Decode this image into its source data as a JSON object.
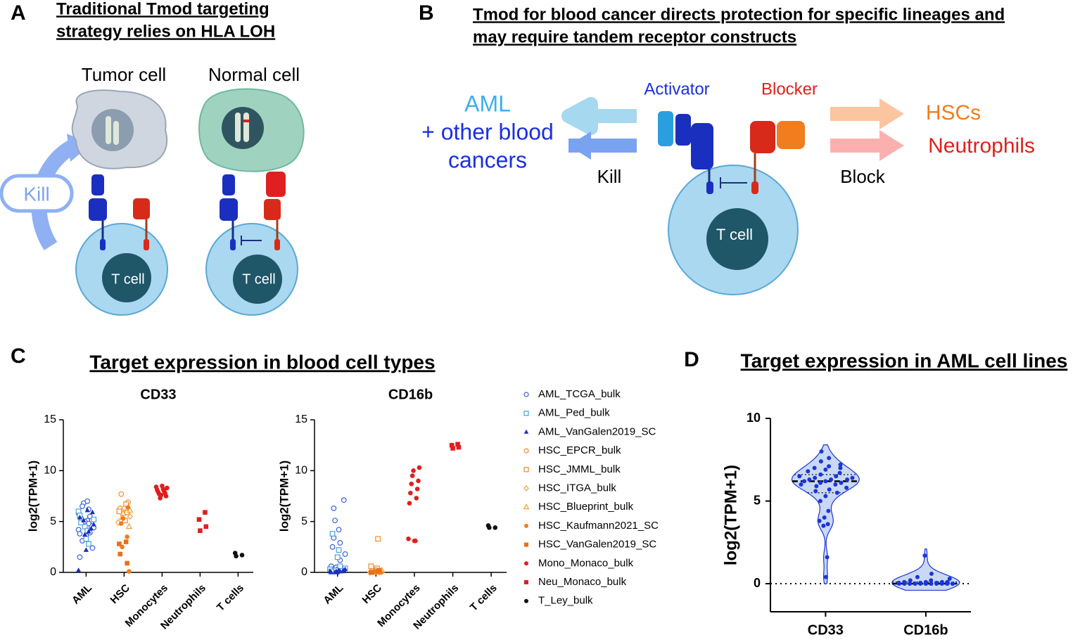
{
  "panel_labels": [
    "A",
    "B",
    "C",
    "D"
  ],
  "panel_a": {
    "title": [
      "Traditional Tmod targeting",
      "strategy relies on HLA LOH"
    ],
    "tumor_cell": "Tumor cell",
    "normal_cell": "Normal cell",
    "kill": "Kill",
    "t_cell": "T cell"
  },
  "panel_b": {
    "title": [
      "Tmod for blood cancer directs protection for specific lineages and",
      "may require tandem receptor constructs"
    ],
    "targets": [
      "AML",
      "+ other blood",
      "cancers"
    ],
    "activator": "Activator",
    "blocker": "Blocker",
    "kill": "Kill",
    "protected": [
      "HSCs",
      "Neutrophils"
    ],
    "block": "Block",
    "t_cell": "T cell"
  },
  "panel_c": {
    "title": "Target expression in blood cell types"
  },
  "panel_d": {
    "title": "Target expression in AML cell lines"
  },
  "chart_data": [
    {
      "type": "strip",
      "subplots": [
        "CD33",
        "CD16b"
      ],
      "y_label": "log2(TPM+1)",
      "categories": [
        "AML",
        "HSC",
        "Monocytes",
        "Neutrophils",
        "T cells"
      ],
      "ylim": [
        0,
        15
      ],
      "yticks": [
        0,
        5,
        10,
        15
      ],
      "series": [
        {
          "name": "AML_TCGA_bulk",
          "color": "#3a5fd9",
          "marker": "circle-open",
          "category": "AML",
          "values": [
            [
              4.2,
              5.1,
              3.8,
              6.2,
              4.9,
              5.5,
              3.1,
              4.6,
              6.8,
              2.4,
              5.0,
              4.4,
              3.6,
              5.8,
              7.0,
              1.5,
              4.8,
              5.3,
              3.9,
              6.5
            ],
            [
              0.2,
              0.3,
              0.1,
              1.2,
              2.5,
              0.4,
              3.4,
              0.2,
              5.1,
              7.1,
              0.5,
              1.8,
              0.3,
              0.2,
              4.2,
              0.6,
              2.9,
              0.1,
              0.3,
              6.3
            ]
          ]
        },
        {
          "name": "AML_Ped_bulk",
          "color": "#4aa0d8",
          "marker": "square-open",
          "category": "AML",
          "values": [
            [
              4.5,
              5.2,
              3.3,
              6.0,
              4.1,
              5.6,
              2.8,
              4.9
            ],
            [
              0.2,
              0.4,
              1.5,
              0.3,
              2.2,
              0.1,
              0.6,
              3.8
            ]
          ]
        },
        {
          "name": "AML_VanGalen2019_SC",
          "color": "#1a2fc0",
          "marker": "triangle",
          "category": "AML",
          "values": [
            [
              4.3,
              5.1,
              5.9,
              3.7,
              4.7,
              2.2,
              0.2,
              6.1,
              5.4,
              4.0
            ],
            [
              0.1,
              0.0,
              0.2,
              0.1,
              0.3,
              0.0,
              0.1,
              0.2,
              0.0,
              0.1
            ]
          ]
        },
        {
          "name": "HSC_EPCR_bulk",
          "color": "#f08a2a",
          "marker": "circle-open",
          "category": "HSC",
          "values": [
            [
              6.3,
              5.9,
              7.7,
              6.9
            ],
            [
              0.1,
              0.0,
              0.2,
              0.1
            ]
          ]
        },
        {
          "name": "HSC_JMML_bulk",
          "color": "#f08a2a",
          "marker": "square-open",
          "category": "HSC",
          "values": [
            [
              5.1,
              6.0,
              6.7
            ],
            [
              0.4,
              0.6,
              3.3
            ]
          ]
        },
        {
          "name": "HSC_ITGA_bulk",
          "color": "#f0a030",
          "marker": "diamond-open",
          "category": "HSC",
          "values": [
            [
              5.5,
              6.3,
              4.9
            ],
            [
              0.1,
              0.2,
              0.0
            ]
          ]
        },
        {
          "name": "HSC_Blueprint_bulk",
          "color": "#f0a030",
          "marker": "triangle-open",
          "category": "HSC",
          "values": [
            [
              5.4,
              4.5,
              5.8,
              6.1
            ],
            [
              0.0,
              0.1,
              0.0,
              0.2
            ]
          ]
        },
        {
          "name": "HSC_Kaufmann2021_SC",
          "color": "#f07d1e",
          "marker": "circle",
          "category": "HSC",
          "values": [
            [
              3.5,
              4.8,
              6.4,
              2.5,
              0.1,
              5.3
            ],
            [
              0.1,
              0.0,
              0.2,
              0.1,
              0.0,
              0.1
            ]
          ]
        },
        {
          "name": "HSC_VanGalen2019_SC",
          "color": "#e8701a",
          "marker": "square",
          "category": "HSC",
          "values": [
            [
              2.8,
              3.0,
              1.8,
              0.9
            ],
            [
              0.0,
              0.1,
              0.0,
              0.2
            ]
          ]
        },
        {
          "name": "Mono_Monaco_bulk",
          "color": "#e01e1e",
          "marker": "circle",
          "category": "Monocytes",
          "values": [
            [
              8.5,
              8.4,
              8.2,
              8.1,
              8.0,
              7.9,
              7.8,
              7.7,
              7.5,
              7.3,
              8.3,
              7.6
            ],
            [
              3.1,
              3.3,
              3.1,
              6.8,
              7.3,
              7.8,
              8.2,
              8.7,
              9.0,
              9.5,
              10.3,
              10.0
            ]
          ]
        },
        {
          "name": "Neu_Monaco_bulk",
          "color": "#e01e1e",
          "marker": "square",
          "category": "Neutrophils",
          "values": [
            [
              5.9,
              5.2,
              4.5,
              4.1
            ],
            [
              12.6,
              12.5,
              12.3,
              12.2
            ]
          ]
        },
        {
          "name": "T_Ley_bulk",
          "color": "#111111",
          "marker": "circle",
          "category": "T cells",
          "values": [
            [
              1.9,
              1.7,
              1.6
            ],
            [
              4.6,
              4.4,
              4.4
            ]
          ]
        }
      ]
    },
    {
      "type": "violin",
      "y_label": "log2(TPM+1)",
      "categories": [
        "CD33",
        "CD16b"
      ],
      "color": "#1a35d8",
      "fill": "#c9d8f5",
      "ylim": [
        -1.7,
        10
      ],
      "yticks": [
        0,
        5,
        10
      ],
      "reference_line": 0,
      "values": [
        [
          8.0,
          7.6,
          7.4,
          7.2,
          7.1,
          7.0,
          7.0,
          6.9,
          6.8,
          6.7,
          6.6,
          6.5,
          6.5,
          6.4,
          6.4,
          6.3,
          6.3,
          6.3,
          6.2,
          6.2,
          6.1,
          6.1,
          6.0,
          6.0,
          5.9,
          5.8,
          5.7,
          5.6,
          5.5,
          5.3,
          5.0,
          4.4,
          4.0,
          3.8,
          3.6,
          3.5,
          1.6,
          0.4
        ],
        [
          1.7,
          0.6,
          0.4,
          0.3,
          0.2,
          0.2,
          0.1,
          0.1,
          0.1,
          0.1,
          0.05,
          0.05,
          0.05,
          0,
          0,
          0,
          0,
          0,
          0,
          0,
          0,
          0,
          0,
          0,
          0,
          0,
          0,
          0,
          0,
          0
        ]
      ]
    }
  ]
}
